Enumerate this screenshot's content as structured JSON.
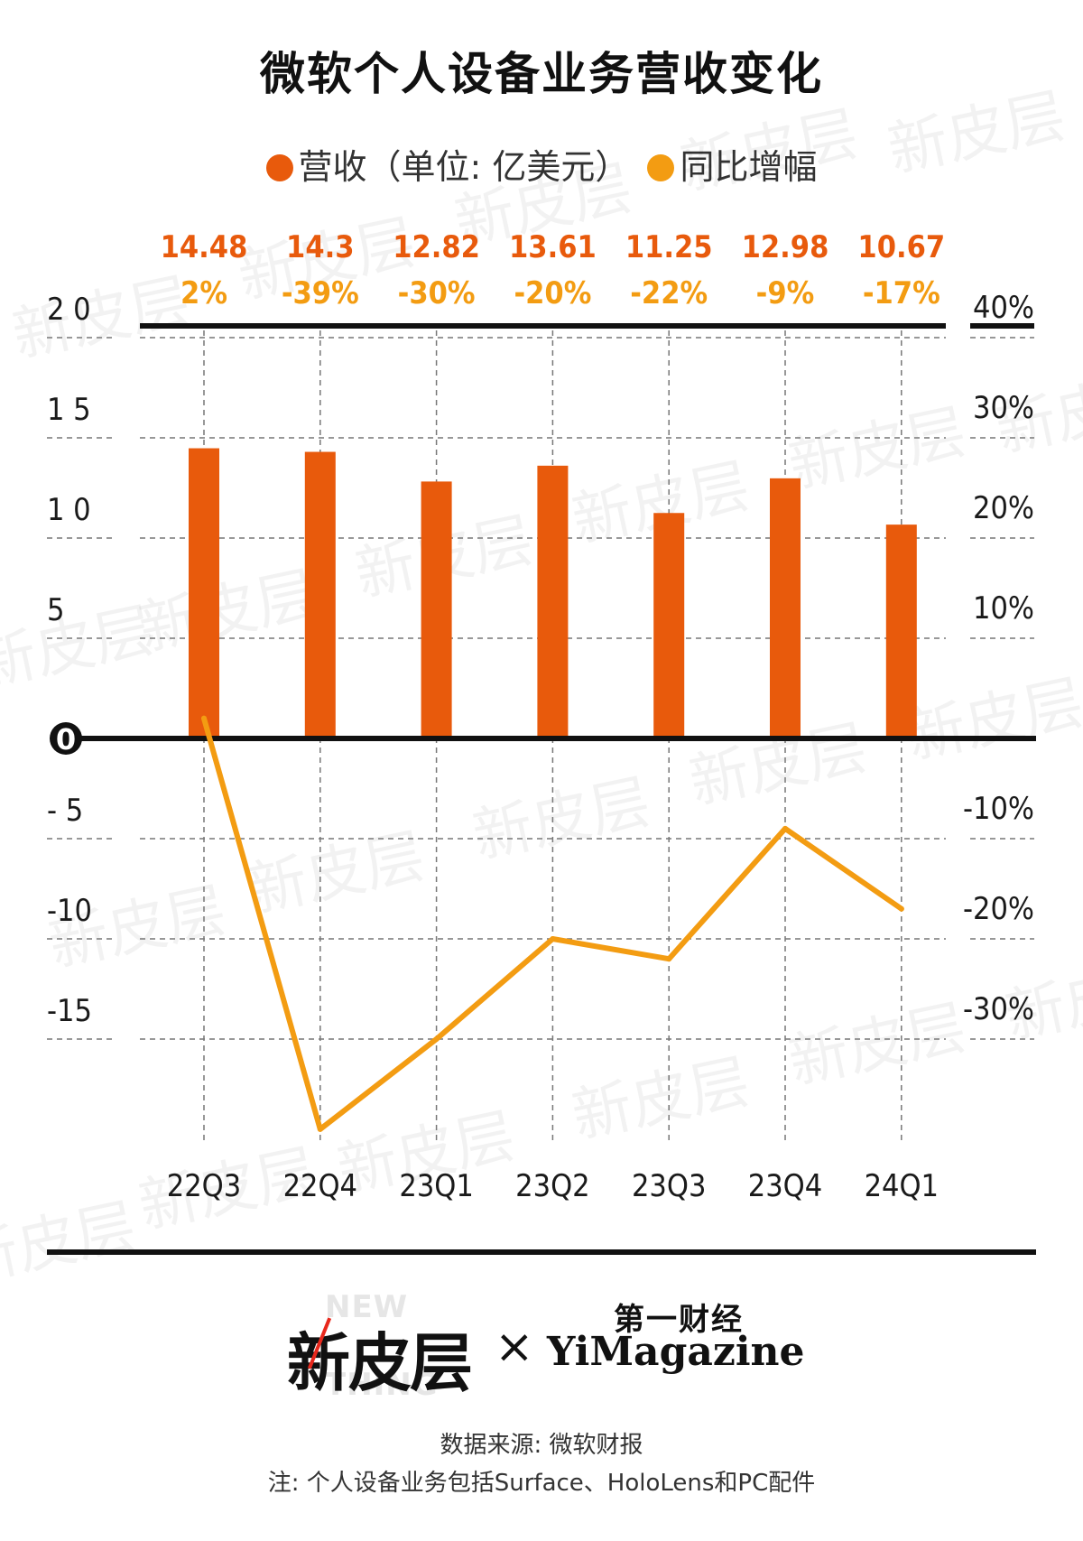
{
  "title": "微软个人设备业务营收变化",
  "legend": {
    "revenue_label": "营收（单位: 亿美元）",
    "growth_label": "同比增幅"
  },
  "colors": {
    "revenue": "#e85a0c",
    "growth": "#f39c12",
    "axis": "#111111",
    "grid": "#777777"
  },
  "watermark_text": "新皮层",
  "chart_data": {
    "type": "bar+line",
    "categories": [
      "22Q3",
      "22Q4",
      "23Q1",
      "23Q2",
      "23Q3",
      "23Q4",
      "24Q1"
    ],
    "series": [
      {
        "name": "营收（单位: 亿美元）",
        "type": "bar",
        "axis": "left",
        "values": [
          14.48,
          14.3,
          12.82,
          13.61,
          11.25,
          12.98,
          10.67
        ],
        "labels": [
          "14.48",
          "14.3",
          "12.82",
          "13.61",
          "11.25",
          "12.98",
          "10.67"
        ]
      },
      {
        "name": "同比增幅",
        "type": "line",
        "axis": "right",
        "values": [
          2,
          -39,
          -30,
          -20,
          -22,
          -9,
          -17
        ],
        "labels": [
          "2%",
          "-39%",
          "-30%",
          "-20%",
          "-22%",
          "-9%",
          "-17%"
        ]
      }
    ],
    "left_axis": {
      "ticks": [
        20,
        15,
        10,
        5,
        0,
        -5,
        -10,
        -15
      ],
      "tick_labels": [
        "2 0",
        "1 5",
        "1 0",
        "5",
        "0",
        "- 5",
        "-10",
        "-15"
      ]
    },
    "right_axis": {
      "ticks": [
        40,
        30,
        20,
        10,
        -10,
        -20,
        -30
      ],
      "tick_labels": [
        "40%",
        "30%",
        "20%",
        "10%",
        "-10%",
        "-20%",
        "-30%"
      ]
    },
    "grid": true,
    "legend_position": "top"
  },
  "footer": {
    "logo_cn": "新皮层",
    "logo_new": "NEW",
    "logo_thing": "THING",
    "times": "×",
    "partner_cn": "第一财经",
    "partner_en": "YiMagazine",
    "source": "数据来源: 微软财报",
    "note": "注: 个人设备业务包括Surface、HoloLens和PC配件"
  }
}
